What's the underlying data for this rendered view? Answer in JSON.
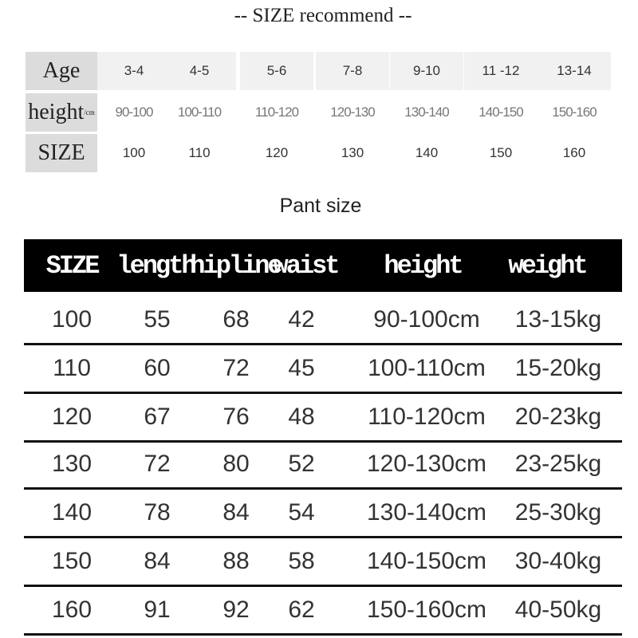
{
  "title": "-- SIZE recommend --",
  "recommend": {
    "headers": [
      "Age",
      "height",
      "SIZE"
    ],
    "height_unit": "/cm",
    "age": [
      "3-4",
      "4-5",
      "5-6",
      "7-8",
      "9-10",
      "11 -12",
      "13-14"
    ],
    "height": [
      "90-100",
      "100-110",
      "110-120",
      "120-130",
      "130-140",
      "140-150",
      "150-160"
    ],
    "size": [
      "100",
      "110",
      "120",
      "130",
      "140",
      "150",
      "160"
    ]
  },
  "pant_title": "Pant size",
  "pant": {
    "headers": [
      "SIZE",
      "length",
      "hipline",
      "waist",
      "height",
      "weight"
    ],
    "rows": [
      [
        "100",
        "55",
        "68",
        "42",
        "90-100cm",
        "13-15kg"
      ],
      [
        "110",
        "60",
        "72",
        "45",
        "100-110cm",
        "15-20kg"
      ],
      [
        "120",
        "67",
        "76",
        "48",
        "110-120cm",
        "20-23kg"
      ],
      [
        "130",
        "72",
        "80",
        "52",
        "120-130cm",
        "23-25kg"
      ],
      [
        "140",
        "78",
        "84",
        "54",
        "130-140cm",
        "25-30kg"
      ],
      [
        "150",
        "84",
        "88",
        "58",
        "140-150cm",
        "30-40kg"
      ],
      [
        "160",
        "91",
        "92",
        "62",
        "150-160cm",
        "40-50kg"
      ]
    ]
  }
}
